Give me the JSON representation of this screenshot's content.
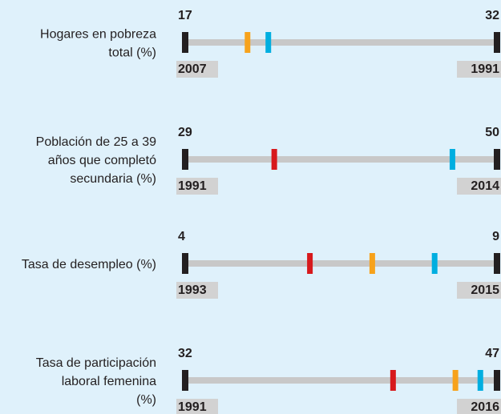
{
  "chart_data": {
    "type": "dot-range",
    "bar_color": "#c8c8c8",
    "end_color": "#231f20",
    "year_box_color": "#d2d2d2",
    "rows": [
      {
        "label": [
          "Hogares en pobreza",
          "total (%)"
        ],
        "min": 17,
        "min_year": "2007",
        "max": 32,
        "max_year": "1991",
        "markers": [
          {
            "color": "#f7a21b",
            "value": 20
          },
          {
            "color": "#00aee0",
            "value": 21
          }
        ]
      },
      {
        "label": [
          "Población de 25 a 39",
          "años que completó",
          "secundaria (%)"
        ],
        "min": 29,
        "min_year": "1991",
        "max": 50,
        "max_year": "2014",
        "markers": [
          {
            "color": "#d7191c",
            "value": 35
          },
          {
            "color": "#00aee0",
            "value": 47
          }
        ]
      },
      {
        "label": [
          "Tasa de desempleo (%)"
        ],
        "min": 4,
        "min_year": "1993",
        "max": 9,
        "max_year": "2015",
        "markers": [
          {
            "color": "#d7191c",
            "value": 6
          },
          {
            "color": "#f7a21b",
            "value": 7
          },
          {
            "color": "#00aee0",
            "value": 8
          }
        ]
      },
      {
        "label": [
          "Tasa de participación",
          "laboral femenina",
          "(%)"
        ],
        "min": 32,
        "min_year": "1991",
        "max": 47,
        "max_year": "2016",
        "markers": [
          {
            "color": "#d7191c",
            "value": 42
          },
          {
            "color": "#f7a21b",
            "value": 45
          },
          {
            "color": "#00aee0",
            "value": 46.2
          }
        ]
      }
    ]
  }
}
